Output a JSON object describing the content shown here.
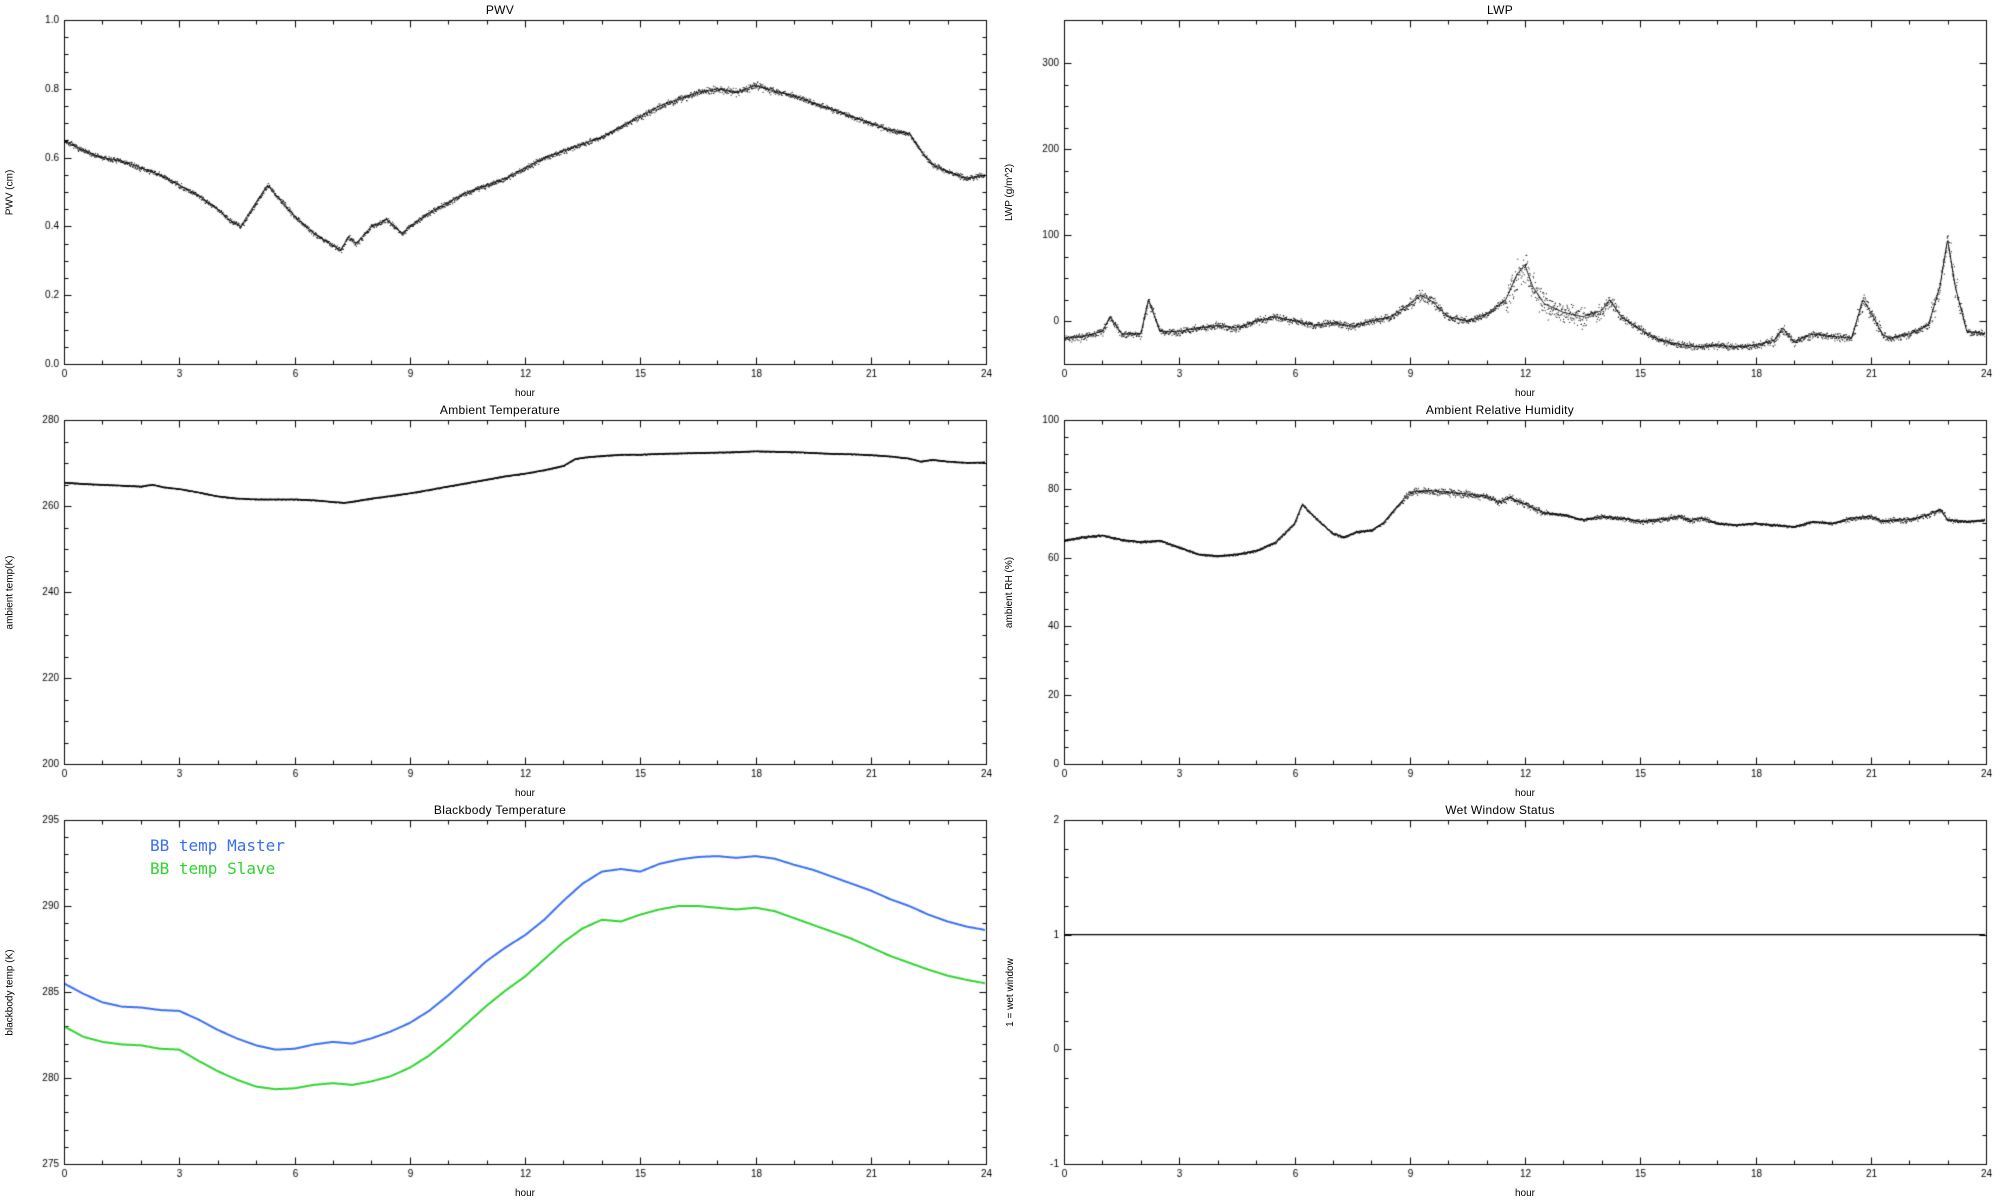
{
  "page": {
    "background": "#ffffff"
  },
  "chart_data": [
    {
      "type": "line",
      "title": "PWV",
      "xlabel": "hour",
      "ylabel": "PWV (cm)",
      "xlim": [
        0,
        24
      ],
      "ylim": [
        0.0,
        1.0
      ],
      "xticks": [
        0,
        3,
        6,
        9,
        12,
        15,
        18,
        21,
        24
      ],
      "xtick_labels": [
        "0",
        "3",
        "6",
        "9",
        "12",
        "15",
        "18",
        "21",
        "24"
      ],
      "yticks": [
        0.0,
        0.2,
        0.4,
        0.6,
        0.8,
        1.0
      ],
      "ytick_labels": [
        "0.0",
        "0.2",
        "0.4",
        "0.6",
        "0.8",
        "1.0"
      ],
      "xminor": 3,
      "yminor": 4,
      "grid": false,
      "legend_position": "none",
      "noise": 0.011,
      "noise_bursts": [
        [
          14.8,
          18.6,
          0.015
        ]
      ],
      "series": [
        {
          "name": "PWV",
          "color": "#000000",
          "style": "scatter-line",
          "x": [
            0,
            0.5,
            1,
            1.5,
            2,
            2.5,
            3,
            3.5,
            4,
            4.3,
            4.6,
            5,
            5.3,
            5.6,
            6,
            6.5,
            7,
            7.2,
            7.4,
            7.6,
            8,
            8.4,
            8.8,
            9,
            9.5,
            10,
            10.5,
            11,
            11.5,
            12,
            12.5,
            13,
            13.5,
            14,
            14.5,
            15,
            15.5,
            16,
            16.5,
            17,
            17.5,
            18,
            18.3,
            18.6,
            19,
            19.5,
            20,
            20.5,
            21,
            21.5,
            22,
            22.3,
            22.6,
            23,
            23.5,
            24
          ],
          "y": [
            0.65,
            0.62,
            0.6,
            0.59,
            0.57,
            0.55,
            0.52,
            0.49,
            0.45,
            0.42,
            0.4,
            0.47,
            0.52,
            0.48,
            0.43,
            0.38,
            0.345,
            0.33,
            0.37,
            0.35,
            0.4,
            0.42,
            0.38,
            0.4,
            0.44,
            0.47,
            0.5,
            0.52,
            0.54,
            0.57,
            0.6,
            0.62,
            0.64,
            0.66,
            0.69,
            0.72,
            0.75,
            0.77,
            0.79,
            0.8,
            0.79,
            0.81,
            0.8,
            0.79,
            0.78,
            0.76,
            0.74,
            0.72,
            0.7,
            0.68,
            0.67,
            0.62,
            0.58,
            0.56,
            0.54,
            0.55
          ]
        }
      ]
    },
    {
      "type": "line",
      "title": "LWP",
      "xlabel": "hour",
      "ylabel": "LWP (g/m^2)",
      "xlim": [
        0,
        24
      ],
      "ylim": [
        -50,
        350
      ],
      "xticks": [
        0,
        3,
        6,
        9,
        12,
        15,
        18,
        21,
        24
      ],
      "xtick_labels": [
        "0",
        "3",
        "6",
        "9",
        "12",
        "15",
        "18",
        "21",
        "24"
      ],
      "yticks": [
        0,
        100,
        200,
        300
      ],
      "ytick_labels": [
        "0",
        "100",
        "200",
        "300"
      ],
      "xminor": 3,
      "yminor": 4,
      "grid": false,
      "legend_position": "none",
      "noise": 6,
      "noise_bursts": [
        [
          2.05,
          2.35,
          12
        ],
        [
          9.0,
          9.7,
          10
        ],
        [
          11.5,
          12.6,
          28
        ],
        [
          12.6,
          13.6,
          18
        ],
        [
          13.8,
          14.5,
          12
        ],
        [
          18.4,
          19.0,
          8
        ],
        [
          20.55,
          21.25,
          14
        ],
        [
          22.55,
          23.35,
          22
        ]
      ],
      "series": [
        {
          "name": "LWP",
          "color": "#000000",
          "style": "scatter-line",
          "x": [
            0,
            0.5,
            1,
            1.2,
            1.5,
            2,
            2.2,
            2.5,
            3,
            3.5,
            4,
            4.5,
            5,
            5.5,
            6,
            6.5,
            7,
            7.5,
            8,
            8.5,
            9,
            9.3,
            9.6,
            10,
            10.5,
            11,
            11.5,
            11.8,
            12,
            12.2,
            12.5,
            13,
            13.5,
            14,
            14.2,
            14.5,
            15,
            15.5,
            16,
            16.5,
            17,
            17.5,
            18,
            18.5,
            18.7,
            19,
            19.5,
            20,
            20.5,
            20.8,
            21,
            21.3,
            21.5,
            22,
            22.5,
            22.8,
            23,
            23.2,
            23.5,
            24
          ],
          "y": [
            -20,
            -18,
            -12,
            5,
            -15,
            -15,
            25,
            -12,
            -12,
            -8,
            -5,
            -8,
            0,
            5,
            0,
            -5,
            -2,
            -6,
            0,
            5,
            20,
            30,
            22,
            5,
            0,
            8,
            25,
            55,
            65,
            40,
            20,
            10,
            5,
            12,
            25,
            5,
            -10,
            -22,
            -27,
            -30,
            -28,
            -30,
            -28,
            -22,
            -8,
            -24,
            -15,
            -18,
            -20,
            25,
            10,
            -15,
            -20,
            -15,
            -5,
            40,
            95,
            40,
            -12,
            -15
          ]
        }
      ]
    },
    {
      "type": "line",
      "title": "Ambient Temperature",
      "xlabel": "hour",
      "ylabel": "ambient temp(K)",
      "xlim": [
        0,
        24
      ],
      "ylim": [
        200,
        280
      ],
      "xticks": [
        0,
        3,
        6,
        9,
        12,
        15,
        18,
        21,
        24
      ],
      "xtick_labels": [
        "0",
        "3",
        "6",
        "9",
        "12",
        "15",
        "18",
        "21",
        "24"
      ],
      "yticks": [
        200,
        220,
        240,
        260,
        280
      ],
      "ytick_labels": [
        "200",
        "220",
        "240",
        "260",
        "280"
      ],
      "xminor": 3,
      "yminor": 4,
      "grid": false,
      "legend_position": "none",
      "noise": 0.18,
      "noise_bursts": [],
      "series": [
        {
          "name": "ambient temp",
          "color": "#000000",
          "style": "scatter-line",
          "x": [
            0,
            0.5,
            1,
            1.5,
            2,
            2.3,
            2.6,
            3,
            3.5,
            4,
            4.5,
            5,
            5.5,
            6,
            6.5,
            7,
            7.3,
            7.6,
            8,
            8.5,
            9,
            9.5,
            10,
            10.5,
            11,
            11.5,
            12,
            12.5,
            13,
            13.3,
            13.6,
            14,
            14.5,
            15,
            15.5,
            16,
            16.5,
            17,
            17.5,
            18,
            18.5,
            19,
            19.5,
            20,
            20.5,
            21,
            21.5,
            22,
            22.3,
            22.6,
            23,
            23.5,
            24
          ],
          "y": [
            265.5,
            265.2,
            265.0,
            264.8,
            264.6,
            265.0,
            264.4,
            264.0,
            263.2,
            262.3,
            261.8,
            261.6,
            261.6,
            261.6,
            261.4,
            261.0,
            260.8,
            261.2,
            261.8,
            262.4,
            263.0,
            263.8,
            264.6,
            265.4,
            266.2,
            267.0,
            267.6,
            268.4,
            269.4,
            271.0,
            271.4,
            271.7,
            272.0,
            272.0,
            272.2,
            272.3,
            272.4,
            272.5,
            272.6,
            272.8,
            272.7,
            272.6,
            272.4,
            272.2,
            272.1,
            271.9,
            271.6,
            271.1,
            270.4,
            270.8,
            270.4,
            270.1,
            270.2
          ]
        }
      ]
    },
    {
      "type": "line",
      "title": "Ambient Relative Humidity",
      "xlabel": "hour",
      "ylabel": "ambient RH (%)",
      "xlim": [
        0,
        24
      ],
      "ylim": [
        0,
        100
      ],
      "xticks": [
        0,
        3,
        6,
        9,
        12,
        15,
        18,
        21,
        24
      ],
      "xtick_labels": [
        "0",
        "3",
        "6",
        "9",
        "12",
        "15",
        "18",
        "21",
        "24"
      ],
      "yticks": [
        0,
        20,
        40,
        60,
        80,
        100
      ],
      "ytick_labels": [
        "0",
        "20",
        "40",
        "60",
        "80",
        "100"
      ],
      "xminor": 3,
      "yminor": 4,
      "grid": false,
      "legend_position": "none",
      "noise": 0.5,
      "noise_bursts": [
        [
          8.8,
          12.6,
          1.5
        ],
        [
          13.8,
          16.8,
          1.1
        ],
        [
          20.3,
          23.3,
          1.1
        ]
      ],
      "series": [
        {
          "name": "ambient RH",
          "color": "#000000",
          "style": "scatter-line",
          "x": [
            0,
            0.5,
            1,
            1.5,
            2,
            2.5,
            3,
            3.5,
            4,
            4.5,
            5,
            5.5,
            6,
            6.2,
            6.5,
            7,
            7.3,
            7.6,
            8,
            8.3,
            8.6,
            9,
            9.5,
            10,
            10.5,
            11,
            11.3,
            11.6,
            12,
            12.5,
            13,
            13.5,
            14,
            14.5,
            15,
            15.5,
            16,
            16.3,
            16.6,
            17,
            17.5,
            18,
            18.5,
            19,
            19.5,
            20,
            20.5,
            21,
            21.3,
            21.6,
            22,
            22.5,
            22.8,
            23,
            23.5,
            24
          ],
          "y": [
            65,
            66,
            66.5,
            65.2,
            64.6,
            65,
            63,
            61,
            60.5,
            61,
            62,
            64.5,
            70,
            75.5,
            72,
            67,
            66,
            67.5,
            68,
            70,
            74,
            79,
            79.5,
            79,
            78.5,
            78,
            76,
            77.5,
            75.5,
            73,
            72.5,
            71,
            72,
            71.5,
            70.5,
            71,
            72,
            70.8,
            71.5,
            70,
            69.5,
            70,
            69.5,
            69,
            70.5,
            70,
            71.5,
            72,
            70.5,
            71,
            71,
            72.5,
            74,
            71,
            70.5,
            71
          ]
        }
      ]
    },
    {
      "type": "line",
      "title": "Blackbody Temperature",
      "xlabel": "hour",
      "ylabel": "blackbody temp (K)",
      "xlim": [
        0,
        24
      ],
      "ylim": [
        275,
        295
      ],
      "xticks": [
        0,
        3,
        6,
        9,
        12,
        15,
        18,
        21,
        24
      ],
      "xtick_labels": [
        "0",
        "3",
        "6",
        "9",
        "12",
        "15",
        "18",
        "21",
        "24"
      ],
      "yticks": [
        275,
        280,
        285,
        290,
        295
      ],
      "ytick_labels": [
        "275",
        "280",
        "285",
        "290",
        "295"
      ],
      "xminor": 3,
      "yminor": 5,
      "grid": false,
      "legend_position": "upper-left",
      "noise": 0,
      "noise_bursts": [],
      "series": [
        {
          "name": "BB temp Master",
          "color": "#3a6ff2",
          "style": "line",
          "width": 2,
          "x": [
            0,
            0.5,
            1,
            1.5,
            2,
            2.5,
            3,
            3.5,
            4,
            4.5,
            5,
            5.5,
            6,
            6.5,
            7,
            7.5,
            8,
            8.5,
            9,
            9.5,
            10,
            10.5,
            11,
            11.5,
            12,
            12.5,
            13,
            13.5,
            14,
            14.5,
            15,
            15.5,
            16,
            16.5,
            17,
            17.5,
            18,
            18.5,
            19,
            19.5,
            20,
            20.5,
            21,
            21.5,
            22,
            22.5,
            23,
            23.5,
            24
          ],
          "y": [
            285.5,
            284.9,
            284.4,
            284.15,
            284.1,
            283.95,
            283.9,
            283.4,
            282.8,
            282.3,
            281.9,
            281.65,
            281.7,
            281.95,
            282.1,
            282.0,
            282.3,
            282.7,
            283.2,
            283.9,
            284.8,
            285.8,
            286.8,
            287.6,
            288.3,
            289.2,
            290.3,
            291.3,
            292.0,
            292.15,
            292.0,
            292.45,
            292.7,
            292.85,
            292.9,
            292.8,
            292.9,
            292.75,
            292.4,
            292.1,
            291.7,
            291.3,
            290.9,
            290.4,
            290.0,
            289.5,
            289.1,
            288.8,
            288.6
          ]
        },
        {
          "name": "BB temp Slave",
          "color": "#2fd42f",
          "style": "line",
          "width": 2,
          "x": [
            0,
            0.5,
            1,
            1.5,
            2,
            2.5,
            3,
            3.5,
            4,
            4.5,
            5,
            5.5,
            6,
            6.5,
            7,
            7.5,
            8,
            8.5,
            9,
            9.5,
            10,
            10.5,
            11,
            11.5,
            12,
            12.5,
            13,
            13.5,
            14,
            14.5,
            15,
            15.5,
            16,
            16.5,
            17,
            17.5,
            18,
            18.5,
            19,
            19.5,
            20,
            20.5,
            21,
            21.5,
            22,
            22.5,
            23,
            23.5,
            24
          ],
          "y": [
            283.0,
            282.4,
            282.1,
            281.95,
            281.9,
            281.7,
            281.65,
            281.0,
            280.4,
            279.9,
            279.5,
            279.35,
            279.4,
            279.6,
            279.7,
            279.6,
            279.8,
            280.1,
            280.6,
            281.3,
            282.2,
            283.2,
            284.2,
            285.1,
            285.9,
            286.9,
            287.9,
            288.7,
            289.2,
            289.1,
            289.5,
            289.8,
            290.0,
            290.0,
            289.9,
            289.8,
            289.9,
            289.7,
            289.3,
            288.9,
            288.5,
            288.1,
            287.6,
            287.1,
            286.7,
            286.3,
            285.95,
            285.7,
            285.5
          ]
        }
      ]
    },
    {
      "type": "line",
      "title": "Wet Window Status",
      "xlabel": "hour",
      "ylabel": "1 = wet window",
      "xlim": [
        0,
        24
      ],
      "ylim": [
        -1,
        2
      ],
      "xticks": [
        0,
        3,
        6,
        9,
        12,
        15,
        18,
        21,
        24
      ],
      "xtick_labels": [
        "0",
        "3",
        "6",
        "9",
        "12",
        "15",
        "18",
        "21",
        "24"
      ],
      "yticks": [
        -1,
        0,
        1,
        2
      ],
      "ytick_labels": [
        "-1",
        "0",
        "1",
        "2"
      ],
      "xminor": 3,
      "yminor": 4,
      "grid": false,
      "legend_position": "none",
      "noise": 0,
      "noise_bursts": [],
      "series": [
        {
          "name": "wet window flag",
          "color": "#000000",
          "style": "line",
          "width": 1.3,
          "x": [
            0,
            24
          ],
          "y": [
            1,
            1
          ]
        }
      ]
    }
  ]
}
